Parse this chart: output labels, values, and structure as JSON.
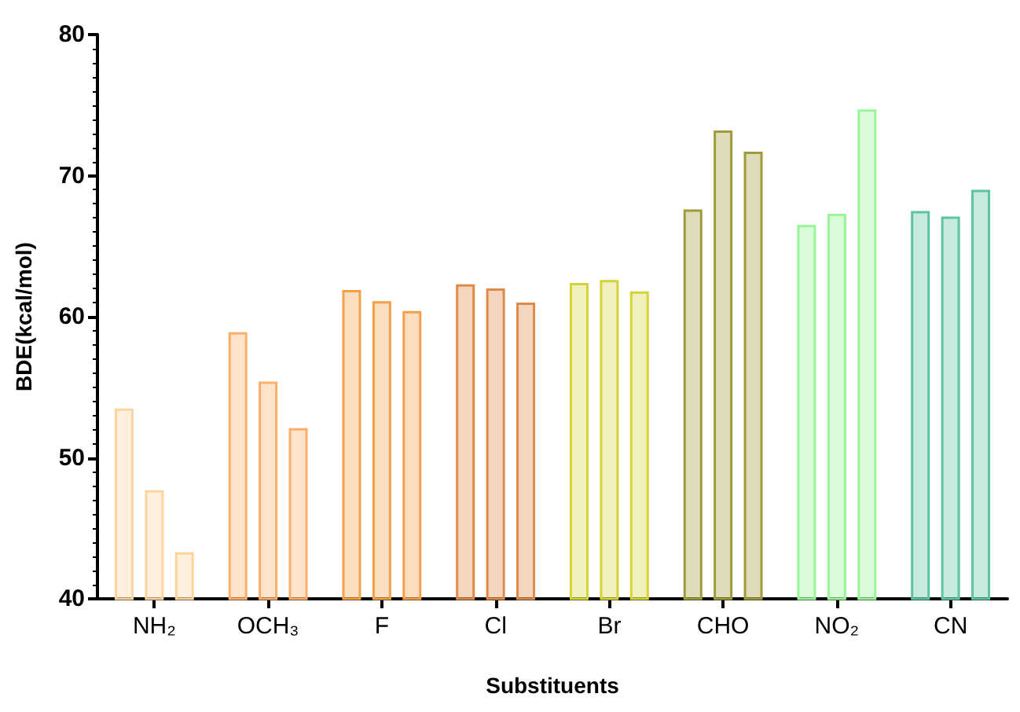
{
  "chart_data": {
    "type": "bar",
    "xlabel": "Substituents",
    "ylabel": "BDE(kcal/mol)",
    "categories": [
      "NH₂",
      "OCH₃",
      "F",
      "Cl",
      "Br",
      "CHO",
      "NO₂",
      "CN"
    ],
    "series": [
      {
        "colors": [
          "#fdd49e",
          "#fdae6b",
          "#f4a04a",
          "#e08a4a",
          "#d4d43a",
          "#a09a3a",
          "#98f598",
          "#5cc5a0"
        ],
        "values": [
          53.5,
          58.9,
          61.9,
          62.3,
          62.4,
          67.6,
          66.5,
          67.5
        ]
      },
      {
        "colors": [
          "#fdd49e",
          "#fdae6b",
          "#f4a04a",
          "#e08a4a",
          "#d4d43a",
          "#a09a3a",
          "#98f598",
          "#5cc5a0"
        ],
        "values": [
          47.7,
          55.4,
          61.1,
          62.0,
          62.6,
          73.2,
          67.3,
          67.1
        ]
      },
      {
        "colors": [
          "#fdd49e",
          "#fdae6b",
          "#f4a04a",
          "#e08a4a",
          "#d4d43a",
          "#a09a3a",
          "#98f598",
          "#5cc5a0"
        ],
        "values": [
          43.3,
          52.1,
          60.4,
          61.0,
          61.8,
          71.7,
          74.7,
          69.0
        ]
      }
    ],
    "ylim": [
      40,
      80
    ],
    "yticks": [
      40,
      50,
      60,
      70,
      80
    ],
    "grid": false
  }
}
